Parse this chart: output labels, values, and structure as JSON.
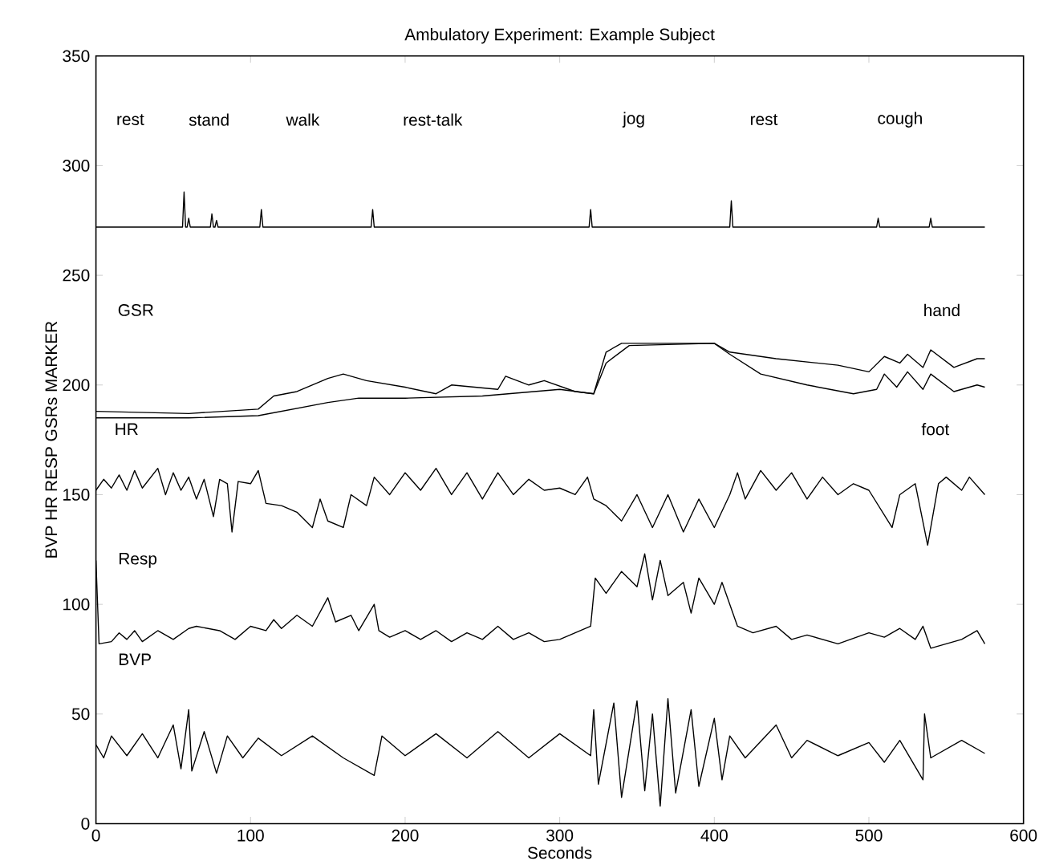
{
  "chart_data": {
    "type": "line",
    "title": "Ambulatory Experiment: Example Subject",
    "xlabel": "Seconds",
    "ylabel": "BVP HR RESP GSRs MARKER",
    "xlim": [
      0,
      600
    ],
    "ylim": [
      0,
      350
    ],
    "xticks": [
      0,
      100,
      200,
      300,
      400,
      500,
      600
    ],
    "yticks": [
      0,
      50,
      100,
      150,
      200,
      250,
      300,
      350
    ],
    "grid": false,
    "marker": "none",
    "line_style": "solid",
    "series": [
      {
        "color": "#000000",
        "x": [
          0,
          56,
          57,
          58,
          59,
          60,
          61,
          74,
          75,
          76,
          77,
          78,
          79,
          106,
          107,
          108,
          178,
          179,
          180,
          319,
          320,
          321,
          410,
          411,
          412,
          505,
          506,
          507,
          539,
          540,
          541,
          575
        ],
        "values": [
          272,
          272,
          288,
          272,
          272,
          276,
          272,
          272,
          278,
          272,
          272,
          275,
          272,
          272,
          280,
          272,
          272,
          280,
          272,
          272,
          280,
          272,
          272,
          284,
          272,
          272,
          276,
          272,
          272,
          276,
          272,
          272
        ]
      },
      {
        "color": "#000000",
        "x": [
          0,
          60,
          105,
          115,
          130,
          150,
          160,
          175,
          200,
          220,
          230,
          260,
          265,
          280,
          290,
          310,
          322,
          330,
          340,
          360,
          400,
          410,
          440,
          480,
          500,
          510,
          520,
          525,
          535,
          540,
          555,
          570,
          575
        ],
        "values": [
          188,
          187,
          189,
          195,
          197,
          203,
          205,
          202,
          199,
          196,
          200,
          198,
          204,
          200,
          202,
          197,
          196,
          215,
          219,
          219,
          219,
          215,
          212,
          209,
          206,
          213,
          210,
          214,
          208,
          216,
          208,
          212,
          212
        ]
      },
      {
        "color": "#000000",
        "x": [
          0,
          60,
          105,
          150,
          170,
          200,
          250,
          300,
          322,
          330,
          345,
          400,
          410,
          430,
          460,
          490,
          505,
          510,
          518,
          525,
          535,
          540,
          555,
          570,
          575
        ],
        "values": [
          185,
          185,
          186,
          192,
          194,
          194,
          195,
          198,
          196,
          210,
          218,
          219,
          214,
          205,
          200,
          196,
          198,
          205,
          199,
          206,
          198,
          205,
          197,
          200,
          199
        ]
      },
      {
        "color": "#000000",
        "x": [
          0,
          5,
          10,
          15,
          20,
          25,
          30,
          40,
          45,
          50,
          55,
          60,
          65,
          70,
          76,
          80,
          85,
          88,
          92,
          100,
          105,
          110,
          120,
          130,
          140,
          145,
          150,
          160,
          165,
          175,
          180,
          190,
          200,
          210,
          220,
          230,
          240,
          250,
          260,
          270,
          280,
          290,
          300,
          310,
          318,
          322,
          330,
          340,
          350,
          360,
          370,
          380,
          390,
          400,
          410,
          415,
          420,
          430,
          440,
          450,
          460,
          470,
          480,
          490,
          500,
          515,
          520,
          530,
          538,
          545,
          550,
          560,
          565,
          575
        ],
        "values": [
          152,
          157,
          153,
          159,
          152,
          161,
          153,
          162,
          150,
          160,
          152,
          158,
          148,
          157,
          140,
          157,
          155,
          133,
          156,
          155,
          161,
          146,
          145,
          142,
          135,
          148,
          138,
          135,
          150,
          145,
          158,
          150,
          160,
          152,
          162,
          150,
          160,
          148,
          160,
          150,
          157,
          152,
          153,
          150,
          158,
          148,
          145,
          138,
          150,
          135,
          150,
          133,
          148,
          135,
          150,
          160,
          148,
          161,
          152,
          160,
          148,
          158,
          150,
          155,
          152,
          135,
          150,
          155,
          127,
          155,
          158,
          152,
          158,
          150
        ]
      },
      {
        "color": "#000000",
        "x": [
          0,
          2,
          10,
          15,
          20,
          25,
          30,
          40,
          50,
          60,
          65,
          80,
          90,
          100,
          110,
          115,
          120,
          130,
          140,
          150,
          155,
          165,
          170,
          180,
          183,
          190,
          200,
          210,
          220,
          230,
          240,
          250,
          260,
          270,
          280,
          290,
          300,
          310,
          320,
          323,
          330,
          340,
          350,
          355,
          360,
          365,
          370,
          380,
          385,
          390,
          400,
          405,
          415,
          425,
          440,
          450,
          460,
          480,
          500,
          510,
          520,
          530,
          535,
          540,
          560,
          570,
          575
        ],
        "values": [
          120,
          82,
          83,
          87,
          84,
          88,
          83,
          88,
          84,
          89,
          90,
          88,
          84,
          90,
          88,
          93,
          89,
          95,
          90,
          103,
          92,
          95,
          88,
          100,
          88,
          85,
          88,
          84,
          88,
          83,
          87,
          84,
          90,
          84,
          87,
          83,
          84,
          87,
          90,
          112,
          105,
          115,
          108,
          123,
          102,
          120,
          104,
          110,
          96,
          112,
          100,
          110,
          90,
          87,
          90,
          84,
          86,
          82,
          87,
          85,
          89,
          84,
          90,
          80,
          84,
          88,
          82
        ]
      },
      {
        "color": "#000000",
        "x": [
          0,
          5,
          10,
          20,
          30,
          40,
          50,
          55,
          60,
          62,
          70,
          78,
          85,
          95,
          105,
          120,
          140,
          160,
          180,
          185,
          200,
          220,
          240,
          260,
          280,
          300,
          320,
          322,
          325,
          335,
          340,
          350,
          355,
          360,
          365,
          370,
          375,
          385,
          390,
          400,
          405,
          410,
          420,
          440,
          450,
          460,
          480,
          500,
          510,
          520,
          535,
          536,
          540,
          560,
          575
        ],
        "values": [
          36,
          30,
          40,
          31,
          41,
          30,
          45,
          25,
          52,
          24,
          42,
          23,
          40,
          30,
          39,
          31,
          40,
          30,
          22,
          40,
          31,
          41,
          30,
          42,
          30,
          41,
          31,
          52,
          18,
          55,
          12,
          56,
          15,
          50,
          8,
          57,
          14,
          52,
          17,
          48,
          20,
          40,
          30,
          45,
          30,
          38,
          31,
          37,
          28,
          38,
          20,
          50,
          30,
          38,
          32
        ]
      }
    ],
    "annotations": [
      "rest",
      "stand",
      "walk",
      "rest-talk",
      "jog",
      "rest",
      "cough",
      "GSR",
      "hand",
      "HR",
      "foot",
      "Resp",
      "BVP"
    ]
  }
}
